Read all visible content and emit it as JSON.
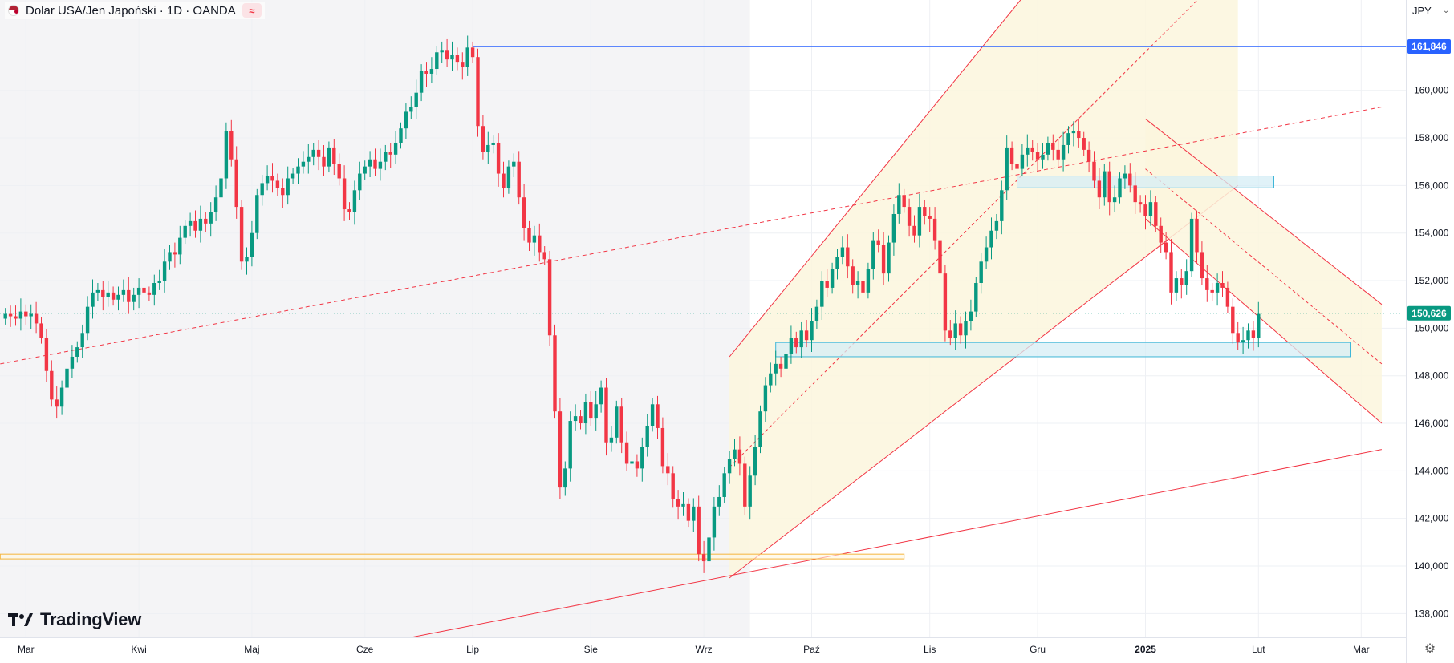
{
  "legend": {
    "symbol": "Dolar USA/Jen Japoński · 1D · OANDA",
    "indicator_badge": "≈"
  },
  "currency_button": {
    "label": "JPY"
  },
  "brand": {
    "name": "TradingView"
  },
  "colors": {
    "up": "#089981",
    "down": "#f23645",
    "red_line": "#f23645",
    "blue_line": "#2962ff",
    "zone_fill": "#d6eef6",
    "zone_stroke": "#3fb6d8",
    "channel_fill": "#fbf6dd",
    "orange_line": "#f5b53d",
    "current_price": "#089981"
  },
  "chart_data": {
    "type": "candlestick",
    "y_range": [
      137,
      163.8
    ],
    "price_axis_labels": [
      "160,000",
      "158,000",
      "156,000",
      "154,000",
      "152,000",
      "150,000",
      "148,000",
      "146,000",
      "144,000",
      "142,000",
      "140,000",
      "138,000"
    ],
    "price_axis_values": [
      160,
      158,
      156,
      154,
      152,
      150,
      148,
      146,
      144,
      142,
      140,
      138
    ],
    "time_labels": [
      {
        "label": "Mar",
        "bar": 4
      },
      {
        "label": "Kwi",
        "bar": 26
      },
      {
        "label": "Maj",
        "bar": 48
      },
      {
        "label": "Cze",
        "bar": 70
      },
      {
        "label": "Lip",
        "bar": 91
      },
      {
        "label": "Sie",
        "bar": 114
      },
      {
        "label": "Wrz",
        "bar": 136
      },
      {
        "label": "Paź",
        "bar": 157
      },
      {
        "label": "Lis",
        "bar": 180
      },
      {
        "label": "Gru",
        "bar": 201
      },
      {
        "label": "2025",
        "bar": 222
      },
      {
        "label": "Lut",
        "bar": 244
      },
      {
        "label": "Mar",
        "bar": 264
      }
    ],
    "current_price": {
      "value": 150.626,
      "label": "150,626"
    },
    "level_161": {
      "value": 161.846,
      "label": "161,846"
    },
    "closes": [
      150.6,
      150.5,
      150.4,
      150.7,
      150.5,
      150.6,
      150.2,
      149.6,
      148.2,
      147.0,
      146.7,
      147.5,
      148.3,
      148.8,
      149.2,
      149.8,
      150.9,
      151.5,
      151.6,
      151.3,
      151.5,
      151.2,
      151.4,
      151.6,
      151.1,
      151.4,
      151.7,
      151.5,
      151.4,
      151.9,
      152.0,
      152.8,
      153.2,
      153.1,
      153.8,
      154.3,
      154.5,
      154.1,
      154.6,
      154.4,
      154.9,
      155.5,
      156.3,
      158.3,
      157.1,
      155.1,
      152.8,
      153.0,
      154.0,
      155.6,
      156.1,
      156.4,
      156.2,
      155.9,
      155.6,
      156.3,
      156.5,
      156.8,
      157.0,
      157.2,
      157.5,
      157.2,
      156.8,
      157.6,
      156.9,
      156.3,
      155.0,
      154.9,
      155.8,
      156.5,
      156.8,
      157.1,
      156.7,
      157.0,
      157.4,
      157.3,
      157.8,
      158.4,
      159.1,
      159.3,
      159.9,
      160.8,
      160.7,
      160.9,
      161.6,
      161.7,
      161.3,
      161.5,
      161.2,
      161.0,
      161.8,
      161.4,
      158.5,
      157.4,
      157.7,
      157.8,
      156.5,
      155.9,
      156.8,
      157.0,
      155.5,
      154.2,
      153.6,
      153.9,
      153.2,
      152.9,
      149.7,
      146.5,
      143.3,
      144.1,
      146.1,
      146.3,
      146.0,
      146.9,
      146.2,
      146.8,
      147.5,
      145.2,
      145.4,
      146.7,
      145.2,
      144.3,
      144.4,
      144.1,
      145.0,
      145.9,
      146.8,
      145.8,
      144.2,
      143.9,
      142.8,
      142.5,
      142.6,
      141.9,
      142.5,
      140.5,
      140.2,
      141.2,
      142.5,
      142.9,
      143.9,
      144.5,
      144.9,
      144.3,
      142.5,
      143.8,
      145.0,
      146.5,
      147.6,
      148.1,
      148.5,
      148.3,
      148.9,
      149.6,
      149.2,
      149.9,
      149.5,
      150.3,
      150.9,
      152.0,
      151.7,
      152.5,
      153.0,
      153.4,
      152.6,
      151.8,
      152.0,
      151.5,
      152.5,
      153.7,
      153.5,
      152.3,
      153.6,
      154.8,
      155.6,
      155.1,
      154.3,
      153.9,
      155.1,
      154.7,
      154.6,
      153.7,
      152.3,
      149.9,
      149.6,
      150.2,
      149.7,
      150.3,
      150.7,
      151.9,
      152.8,
      153.4,
      154.1,
      154.5,
      155.8,
      157.6,
      156.9,
      156.7,
      157.3,
      157.6,
      157.4,
      157.1,
      157.3,
      157.8,
      157.5,
      157.1,
      157.7,
      158.2,
      158.3,
      158.0,
      157.5,
      157.0,
      156.2,
      155.5,
      156.6,
      155.3,
      155.5,
      156.3,
      156.5,
      156.0,
      155.3,
      155.2,
      154.7,
      155.3,
      154.3,
      153.6,
      153.2,
      151.5,
      152.1,
      151.8,
      152.4,
      154.6,
      153.2,
      152.1,
      151.6,
      151.5,
      151.9,
      151.7,
      150.9,
      149.8,
      149.4,
      149.5,
      149.9,
      149.6,
      150.6
    ],
    "horizontal_levels": [
      {
        "name": "resistance-161846",
        "value": 161.846,
        "color": "blue"
      },
      {
        "name": "current-price",
        "value": 150.626,
        "color": "green-dotted"
      }
    ],
    "zones": [
      {
        "name": "support-zone-lower",
        "from_bar": 150,
        "to_bar": 262,
        "low": 148.8,
        "high": 149.4
      },
      {
        "name": "resistance-zone-upper",
        "from_bar": 197,
        "to_bar": 247,
        "low": 155.9,
        "high": 156.4
      },
      {
        "name": "support-zone-orange",
        "from_bar": -1,
        "to_bar": 175,
        "low": 140.3,
        "high": 140.5
      }
    ],
    "trendlines": [
      {
        "name": "long-term-upper-trendline",
        "style": "solid",
        "x1": -1,
        "y1": 166.5,
        "x2": 240,
        "y2": 171.5
      },
      {
        "name": "long-term-lower-trendline",
        "style": "solid",
        "x1": 79,
        "y1": 137.0,
        "x2": 268,
        "y2": 144.9
      },
      {
        "name": "dashed-trendline",
        "style": "dashed",
        "x1": -1,
        "y1": 148.5,
        "x2": 268,
        "y2": 159.3
      }
    ],
    "channels": [
      {
        "name": "ascending-channel",
        "x1": 141,
        "x2": 240,
        "lower_y1": 139.5,
        "lower_y2": 156.0,
        "upper_y1": 148.8,
        "upper_y2": 175.0,
        "mid_to_bar": 240
      },
      {
        "name": "descending-channel",
        "x1": 222,
        "x2": 268,
        "upper_y1": 158.8,
        "upper_y2": 151.0,
        "lower_y1": 154.6,
        "lower_y2": 146.0
      }
    ]
  }
}
